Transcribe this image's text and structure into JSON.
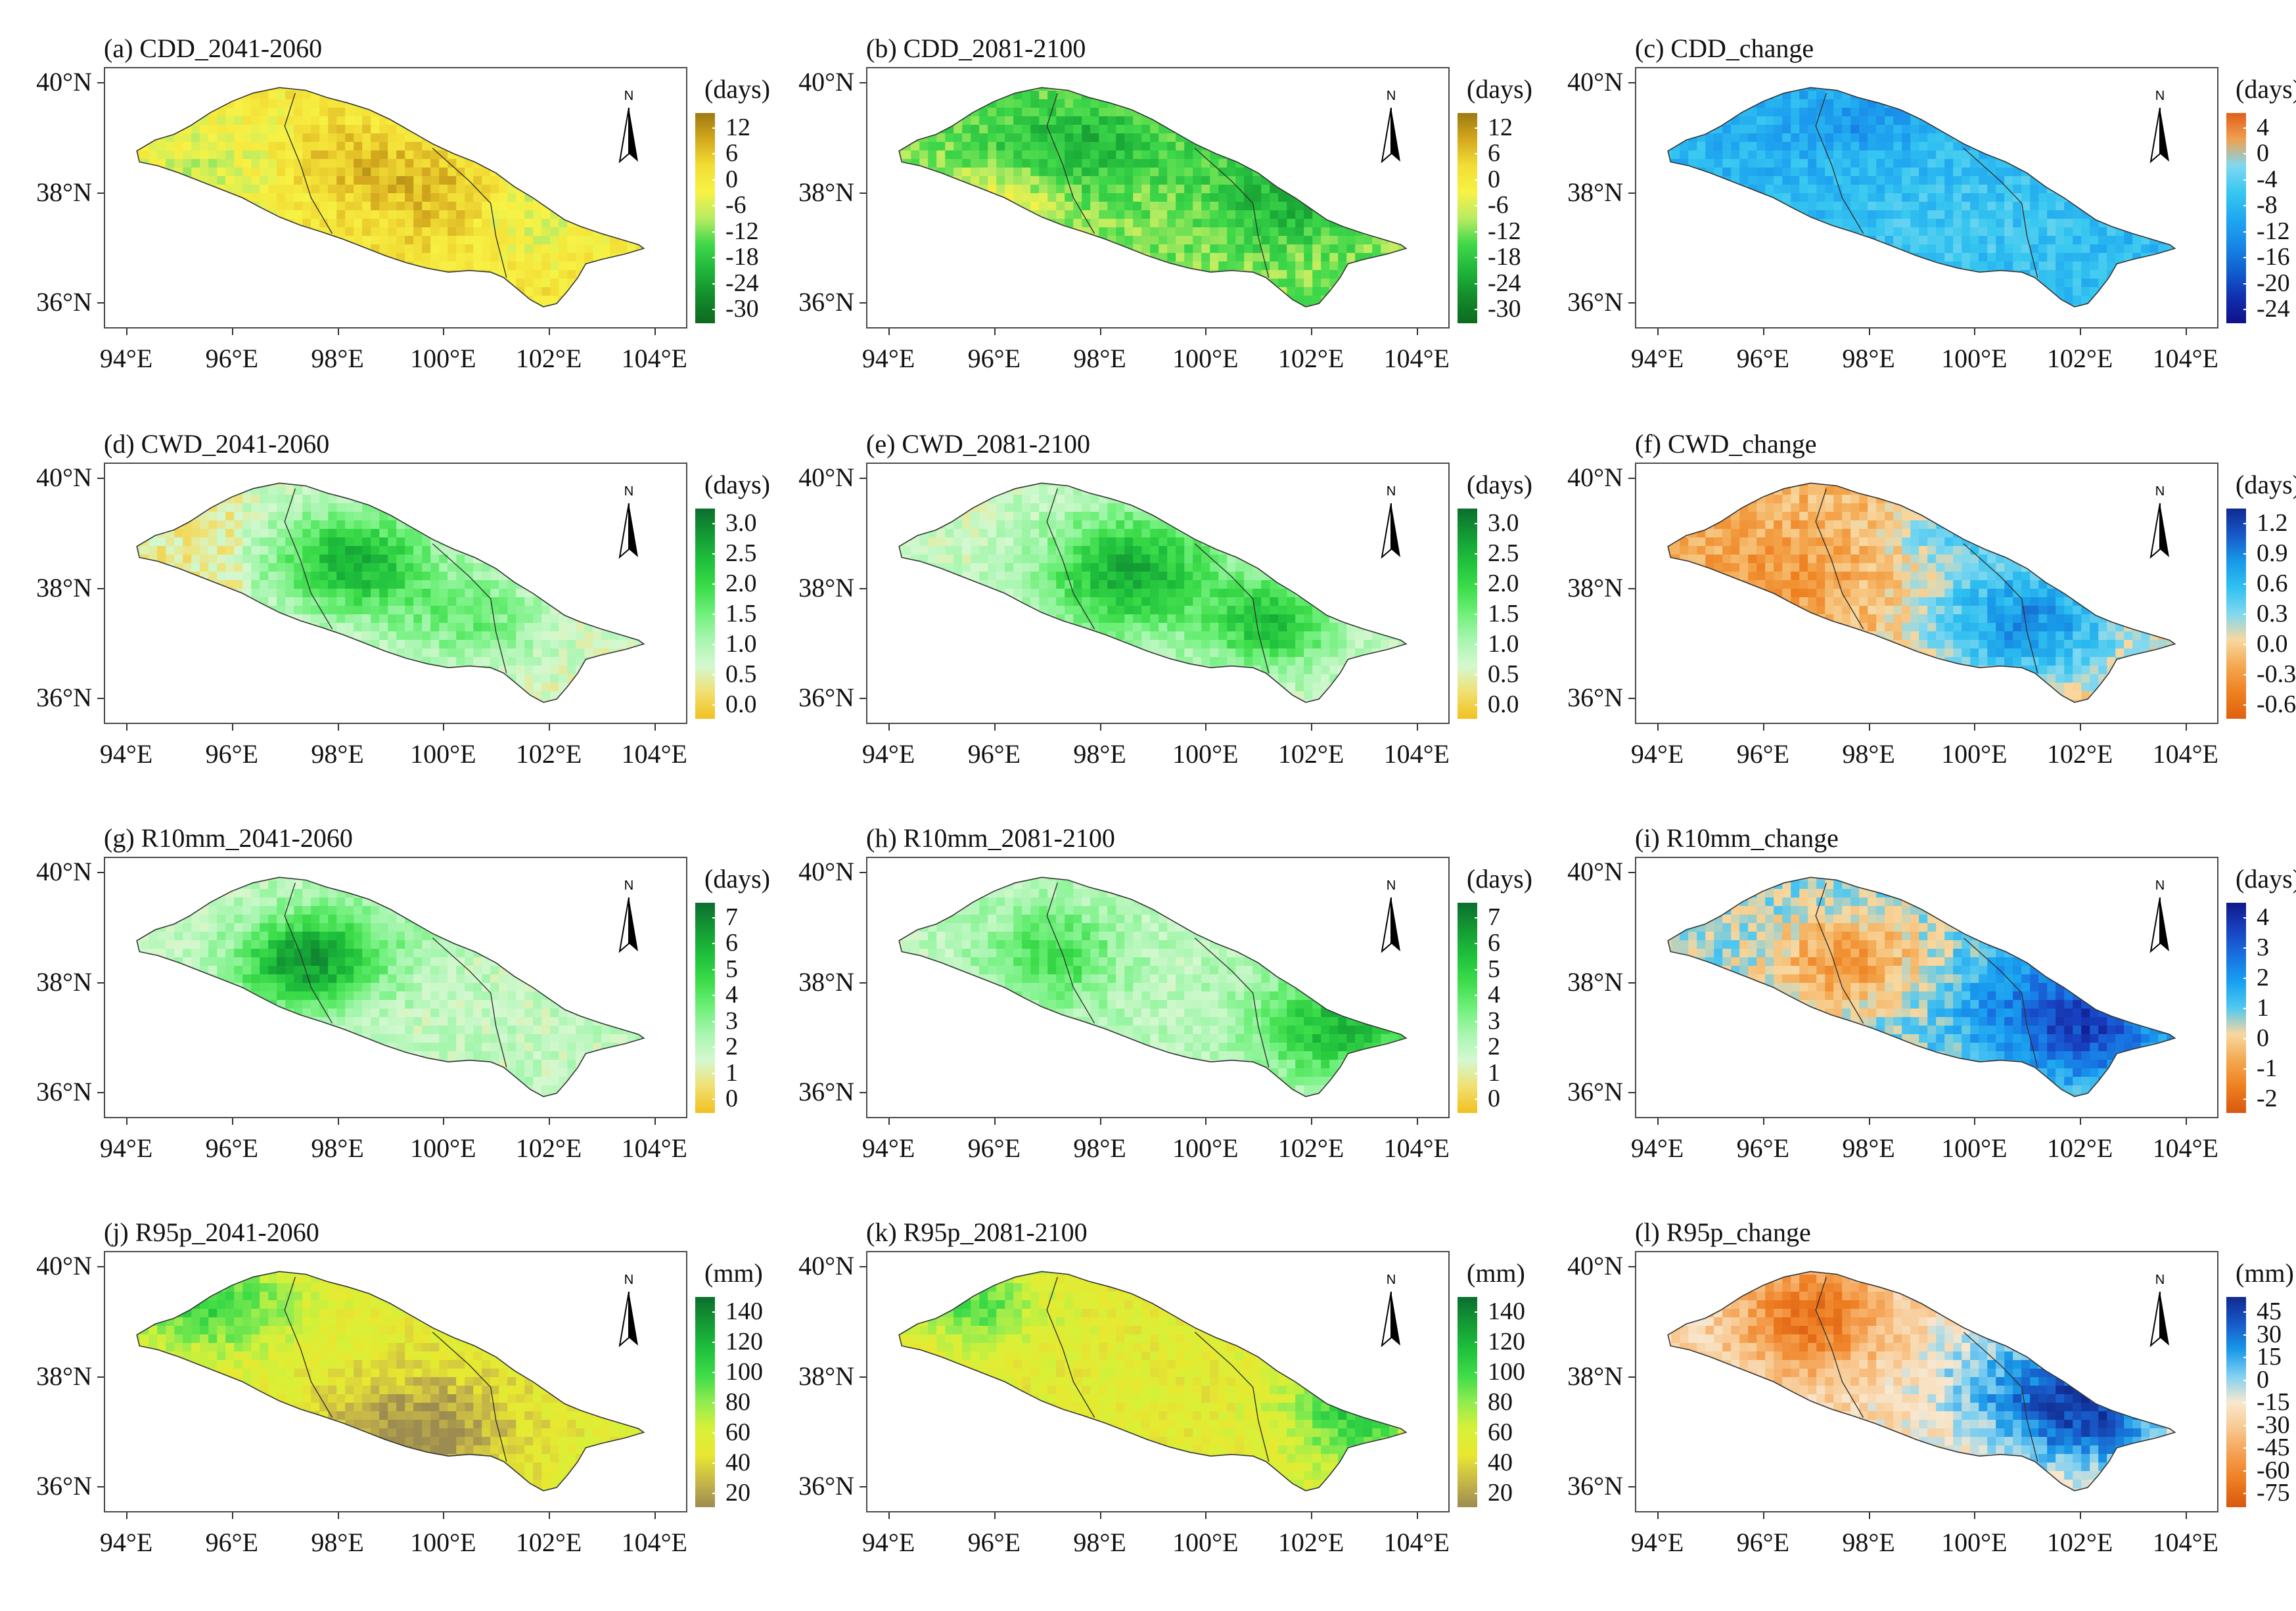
{
  "lat_labels": [
    "40°N",
    "38°N",
    "36°N"
  ],
  "lon_labels": [
    "94°E",
    "96°E",
    "98°E",
    "100°E",
    "102°E",
    "104°E"
  ],
  "north_label": "N",
  "panels": [
    {
      "title": "(a) CDD_2041-2060",
      "unit": "(days)",
      "ticks": [
        "12",
        "6",
        "0",
        "-6",
        "-12",
        "-18",
        "-24",
        "-30"
      ],
      "colorbar": [
        "#9c7a10",
        "#d4a81e",
        "#f2dd35",
        "#f8f245",
        "#b9ec62",
        "#3fd84a",
        "#1fb53b",
        "#138b2b",
        "#0d6a20"
      ],
      "scheme": "cdd",
      "seed": 11
    },
    {
      "title": "(b) CDD_2081-2100",
      "unit": "(days)",
      "ticks": [
        "12",
        "6",
        "0",
        "-6",
        "-12",
        "-18",
        "-24",
        "-30"
      ],
      "colorbar": [
        "#9c7a10",
        "#d4a81e",
        "#f2dd35",
        "#f8f245",
        "#b9ec62",
        "#3fd84a",
        "#1fb53b",
        "#138b2b",
        "#0d6a20"
      ],
      "scheme": "cdd2",
      "seed": 23
    },
    {
      "title": "(c) CDD_change",
      "unit": "(days)",
      "ticks": [
        "4",
        "0",
        "-4",
        "-8",
        "-12",
        "-16",
        "-20",
        "-24"
      ],
      "colorbar": [
        "#e0601a",
        "#f0a050",
        "#80d8f0",
        "#38c8f0",
        "#20a8f0",
        "#1888e8",
        "#1060d0",
        "#1030b0",
        "#10108a"
      ],
      "scheme": "cddc",
      "seed": 37
    },
    {
      "title": "(d) CWD_2041-2060",
      "unit": "(days)",
      "ticks": [
        "3.0",
        "2.5",
        "2.0",
        "1.5",
        "1.0",
        "0.5",
        "0.0"
      ],
      "colorbar": [
        "#0c6e2e",
        "#139a34",
        "#1fc03c",
        "#3cdc4a",
        "#6ff07a",
        "#a8f6b0",
        "#d4f8d0",
        "#f0e070",
        "#f2c020"
      ],
      "scheme": "cwd",
      "seed": 41
    },
    {
      "title": "(e) CWD_2081-2100",
      "unit": "(days)",
      "ticks": [
        "3.0",
        "2.5",
        "2.0",
        "1.5",
        "1.0",
        "0.5",
        "0.0"
      ],
      "colorbar": [
        "#0c6e2e",
        "#139a34",
        "#1fc03c",
        "#3cdc4a",
        "#6ff07a",
        "#a8f6b0",
        "#d4f8d0",
        "#f0e070",
        "#f2c020"
      ],
      "scheme": "cwd2",
      "seed": 53
    },
    {
      "title": "(f) CWD_change",
      "unit": "(days)",
      "ticks": [
        "1.2",
        "0.9",
        "0.6",
        "0.3",
        "0.0",
        "-0.3",
        "-0.6"
      ],
      "colorbar": [
        "#102a90",
        "#1858c8",
        "#1898e8",
        "#30c0f0",
        "#80d8f0",
        "#f8d8a0",
        "#f4a850",
        "#ee8020",
        "#e06010"
      ],
      "scheme": "cwdc",
      "seed": 67
    },
    {
      "title": "(g) R10mm_2041-2060",
      "unit": "(days)",
      "ticks": [
        "7",
        "6",
        "5",
        "4",
        "3",
        "2",
        "1",
        "0"
      ],
      "colorbar": [
        "#0c6e2e",
        "#139a34",
        "#1fc03c",
        "#3cdc4a",
        "#6ff07a",
        "#a8f6b0",
        "#d4f8d0",
        "#f0e070",
        "#f2c020"
      ],
      "scheme": "r10",
      "seed": 71
    },
    {
      "title": "(h) R10mm_2081-2100",
      "unit": "(days)",
      "ticks": [
        "7",
        "6",
        "5",
        "4",
        "3",
        "2",
        "1",
        "0"
      ],
      "colorbar": [
        "#0c6e2e",
        "#139a34",
        "#1fc03c",
        "#3cdc4a",
        "#6ff07a",
        "#a8f6b0",
        "#d4f8d0",
        "#f0e070",
        "#f2c020"
      ],
      "scheme": "r102",
      "seed": 83
    },
    {
      "title": "(i) R10mm_change",
      "unit": "(days)",
      "ticks": [
        "4",
        "3",
        "2",
        "1",
        "0",
        "-1",
        "-2"
      ],
      "colorbar": [
        "#101a8a",
        "#1840c0",
        "#1870e0",
        "#18a0f0",
        "#50c8f0",
        "#f8d8a0",
        "#f4a850",
        "#ee8020",
        "#d85810"
      ],
      "scheme": "r10c",
      "seed": 97
    },
    {
      "title": "(j) R95p_2041-2060",
      "unit": "(mm)",
      "ticks": [
        "140",
        "120",
        "100",
        "80",
        "60",
        "40",
        "20"
      ],
      "colorbar": [
        "#0c6e2e",
        "#139a34",
        "#1fc03c",
        "#40dc48",
        "#90ec50",
        "#d8f038",
        "#e8e830",
        "#c8b848",
        "#9c8c50"
      ],
      "scheme": "r95",
      "seed": 101
    },
    {
      "title": "(k) R95p_2081-2100",
      "unit": "(mm)",
      "ticks": [
        "140",
        "120",
        "100",
        "80",
        "60",
        "40",
        "20"
      ],
      "colorbar": [
        "#0c6e2e",
        "#139a34",
        "#1fc03c",
        "#40dc48",
        "#90ec50",
        "#d8f038",
        "#e8e830",
        "#c8b848",
        "#9c8c50"
      ],
      "scheme": "r952",
      "seed": 113
    },
    {
      "title": "(l) R95p_change",
      "unit": "(mm)",
      "ticks": [
        "45",
        "30",
        "15",
        "0",
        "-15",
        "-30",
        "-45",
        "-60",
        "-75"
      ],
      "colorbar": [
        "#102a90",
        "#1858c8",
        "#1898e8",
        "#80d0f0",
        "#f8e8d0",
        "#f8c890",
        "#f4a050",
        "#ee7c20",
        "#d85810"
      ],
      "scheme": "r95c",
      "seed": 127
    }
  ]
}
